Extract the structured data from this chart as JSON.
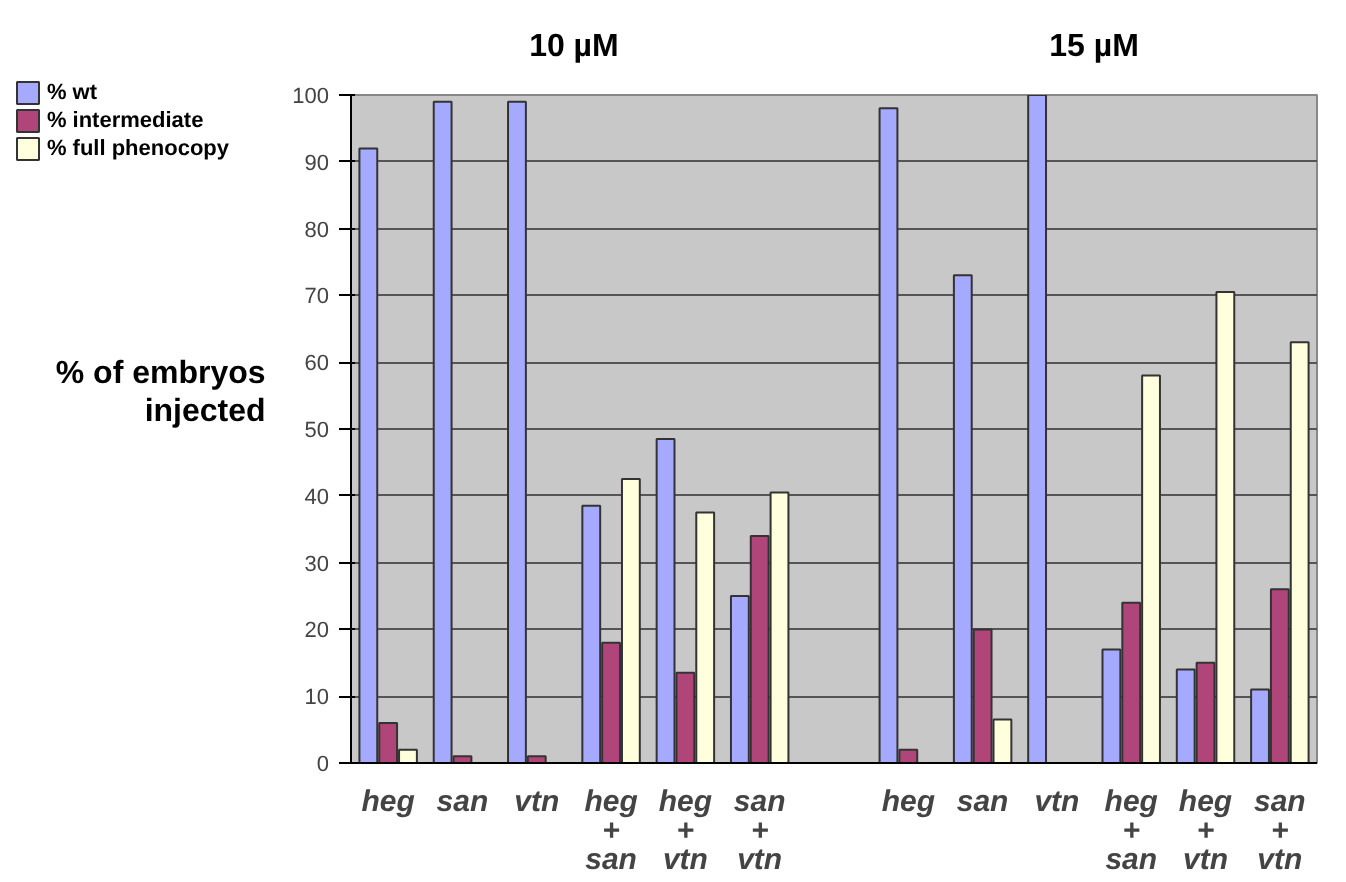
{
  "chart_data": {
    "type": "bar",
    "ylabel": "% of embryos\ninjected",
    "annotations": [
      "10 µM",
      "15 µM"
    ],
    "categories": [
      "heg",
      "san",
      "vtn",
      "heg\n+\nsan",
      "heg\n+\nvtn",
      "san\n+\nvtn",
      null,
      "heg",
      "san",
      "vtn",
      "heg\n+\nsan",
      "heg\n+\nvtn",
      "san\n+\nvtn"
    ],
    "series": [
      {
        "name": "% wt",
        "color": "#a6aaff",
        "values": [
          92,
          99,
          99,
          38.5,
          48.5,
          25,
          null,
          98,
          73,
          100,
          17,
          14,
          11
        ]
      },
      {
        "name": "% intermediate",
        "color": "#b0457a",
        "values": [
          6,
          1,
          1,
          18,
          13.5,
          34,
          null,
          2,
          20,
          null,
          24,
          15,
          26
        ]
      },
      {
        "name": "% full phenocopy",
        "color": "#ffffdd",
        "values": [
          2,
          null,
          null,
          42.5,
          37.5,
          40.5,
          null,
          null,
          6.5,
          null,
          58,
          70.5,
          63
        ]
      }
    ],
    "ylim": [
      0,
      100
    ],
    "yticks": [
      0,
      10,
      20,
      30,
      40,
      50,
      60,
      70,
      80,
      90,
      100
    ],
    "grid": "y",
    "legend": "top left"
  }
}
